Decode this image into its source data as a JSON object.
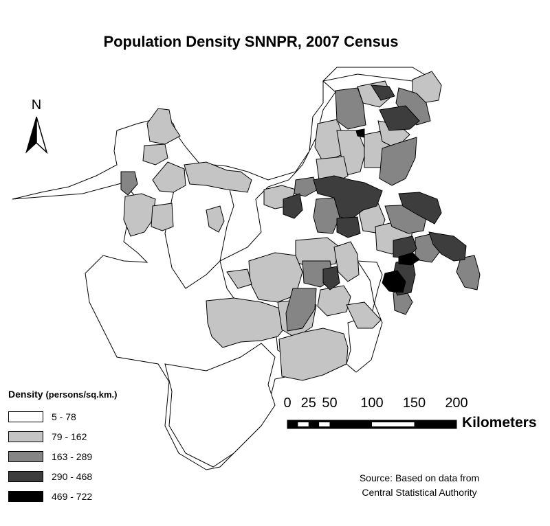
{
  "map": {
    "title": "Population Density SNNPR, 2007 Census",
    "north_letter": "N",
    "legend": {
      "title": "Density",
      "subtitle": "(persons/sq.km.)",
      "classes": [
        {
          "label": "5 - 78",
          "color": "#ffffff"
        },
        {
          "label": "79 - 162",
          "color": "#c4c4c4"
        },
        {
          "label": "163 - 289",
          "color": "#858585"
        },
        {
          "label": "290 - 468",
          "color": "#3d3d3d"
        },
        {
          "label": "469 - 722",
          "color": "#000000"
        }
      ]
    },
    "scale_bar": {
      "ticks": [
        "0",
        "25",
        "50",
        "100",
        "150",
        "200"
      ],
      "tick_values": [
        0,
        25,
        50,
        100,
        150,
        200
      ],
      "unit": "Kilometers"
    },
    "source": {
      "line1": "Source: Based on data from",
      "line2": "Central Statistical Authority"
    },
    "colors": {
      "outline": "#000000",
      "class_1": "#ffffff",
      "class_2": "#c4c4c4",
      "class_3": "#858585",
      "class_4": "#3d3d3d",
      "class_5": "#000000"
    }
  }
}
